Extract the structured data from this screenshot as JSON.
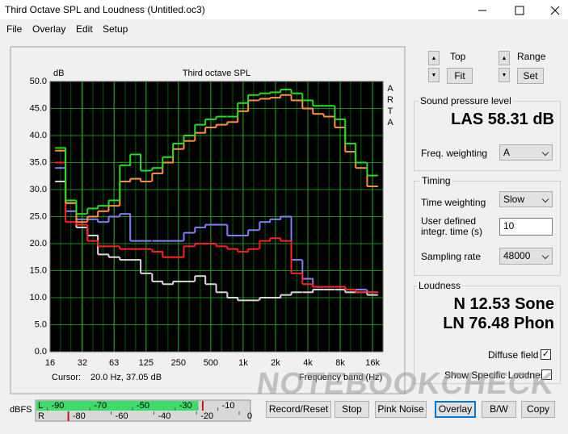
{
  "window": {
    "title": "Third Octave SPL and Loudness (Untitled.oc3)"
  },
  "menu": [
    "File",
    "Overlay",
    "Edit",
    "Setup"
  ],
  "chart_data": {
    "type": "step",
    "title": "Third octave SPL",
    "y_unit": "dB",
    "side_label": "ARTA",
    "x_label": "Frequency band (Hz)",
    "log_x": true,
    "grid": true,
    "x": [
      20,
      25,
      31.5,
      40,
      50,
      63,
      80,
      100,
      125,
      160,
      200,
      250,
      315,
      400,
      500,
      630,
      800,
      1000,
      1250,
      1600,
      2000,
      2500,
      3150,
      4000,
      5000,
      6300,
      8000,
      10000,
      12500,
      16000
    ],
    "xlim": [
      16,
      20000
    ],
    "xticks": [
      16,
      32,
      63,
      125,
      250,
      500,
      {
        "value": 1000,
        "label": "1k"
      },
      {
        "value": 2000,
        "label": "2k"
      },
      {
        "value": 4000,
        "label": "4k"
      },
      {
        "value": 8000,
        "label": "8k"
      },
      {
        "value": 16000,
        "label": "16k"
      }
    ],
    "ylim": [
      0,
      50
    ],
    "yticks": [
      {
        "value": 0,
        "label": "0.0"
      },
      {
        "value": 5,
        "label": "5.0"
      },
      {
        "value": 10,
        "label": "10.0"
      },
      {
        "value": 15,
        "label": "15.0"
      },
      {
        "value": 20,
        "label": "20.0"
      },
      {
        "value": 25,
        "label": "25.0"
      },
      {
        "value": 30,
        "label": "30.0"
      },
      {
        "value": 35,
        "label": "35.0"
      },
      {
        "value": 40,
        "label": "40.0"
      },
      {
        "value": 45,
        "label": "45.0"
      },
      {
        "value": 50,
        "label": "50.0"
      }
    ],
    "series": [
      {
        "color": "#d8d8d8",
        "values": [
          31.5,
          27.5,
          23.0,
          21.5,
          18.0,
          17.5,
          17.0,
          17.0,
          14.5,
          13.0,
          12.5,
          13.0,
          13.0,
          14.0,
          12.5,
          11.0,
          10.0,
          9.5,
          9.5,
          10.0,
          10.0,
          10.5,
          11.0,
          11.0,
          11.5,
          11.5,
          11.5,
          11.0,
          11.0,
          10.5
        ]
      },
      {
        "color": "#8080ff",
        "values": [
          34.0,
          26.0,
          24.5,
          24.5,
          24.0,
          25.0,
          25.5,
          20.5,
          20.5,
          20.5,
          20.5,
          20.5,
          22.0,
          23.0,
          23.5,
          23.5,
          21.5,
          21.5,
          22.5,
          24.0,
          24.5,
          25.0,
          17.0,
          13.5,
          12.0,
          12.0,
          12.0,
          11.5,
          11.5,
          11.0
        ]
      },
      {
        "color": "#ff2020",
        "values": [
          35.0,
          24.0,
          23.5,
          20.5,
          19.5,
          19.5,
          19.0,
          19.0,
          19.0,
          18.5,
          17.5,
          17.5,
          19.5,
          20.0,
          20.0,
          19.5,
          19.0,
          18.5,
          19.0,
          20.5,
          21.0,
          20.5,
          14.5,
          12.5,
          12.0,
          12.0,
          12.0,
          11.5,
          11.0,
          11.0
        ]
      },
      {
        "color": "#ff9040",
        "values": [
          37.2,
          27.5,
          24.0,
          25.0,
          26.0,
          27.0,
          31.5,
          32.0,
          31.5,
          33.0,
          35.0,
          37.5,
          39.0,
          40.5,
          41.5,
          42.0,
          42.5,
          44.5,
          46.5,
          46.8,
          47.0,
          47.5,
          46.5,
          45.0,
          44.0,
          43.5,
          41.5,
          37.0,
          34.0,
          30.6
        ]
      },
      {
        "color": "#22dd22",
        "values": [
          37.7,
          28.0,
          25.5,
          26.5,
          27.0,
          28.0,
          34.5,
          36.5,
          33.5,
          34.0,
          36.0,
          38.5,
          40.0,
          42.0,
          43.0,
          43.5,
          43.5,
          46.0,
          47.5,
          47.8,
          48.0,
          48.5,
          47.8,
          46.5,
          45.5,
          45.5,
          43.0,
          38.5,
          35.0,
          32.6
        ]
      }
    ]
  },
  "cursor": {
    "label": "Cursor:",
    "value": "20.0 Hz, 37.05 dB"
  },
  "scale_controls": {
    "top": "Top",
    "range": "Range",
    "fit": "Fit",
    "set": "Set"
  },
  "spl": {
    "title": "Sound pressure level",
    "reading": "LAS 58.31 dB",
    "weighting_label": "Freq. weighting",
    "weighting": "A"
  },
  "timing": {
    "title": "Timing",
    "time_weighting_label": "Time weighting",
    "time_weighting": "Slow",
    "integration_label_1": "User defined",
    "integration_label_2": "integr. time (s)",
    "integration_time": "10",
    "sampling_rate_label": "Sampling rate",
    "sampling_rate": "48000"
  },
  "loudness": {
    "title": "Loudness",
    "n": "N 12.53 Sone",
    "ln": "LN 76.48 Phon",
    "diffuse_field": "Diffuse field",
    "specific": "Show Specific Loudness"
  },
  "meter": {
    "unit": "dBFS",
    "left_channel": "L",
    "right_channel": "R",
    "range": [
      -100,
      0
    ],
    "left_ticks": [
      -90,
      -70,
      -50,
      -30,
      -10
    ],
    "right_ticks": [
      -80,
      -60,
      -40,
      -20,
      0
    ],
    "left_level": -24,
    "left_peak": -22,
    "right_peak": -85
  },
  "buttons": [
    "Record/Reset",
    "Stop",
    "Pink Noise",
    "Overlay",
    "B/W",
    "Copy"
  ],
  "watermark": "NOTEBOOKCHECK"
}
